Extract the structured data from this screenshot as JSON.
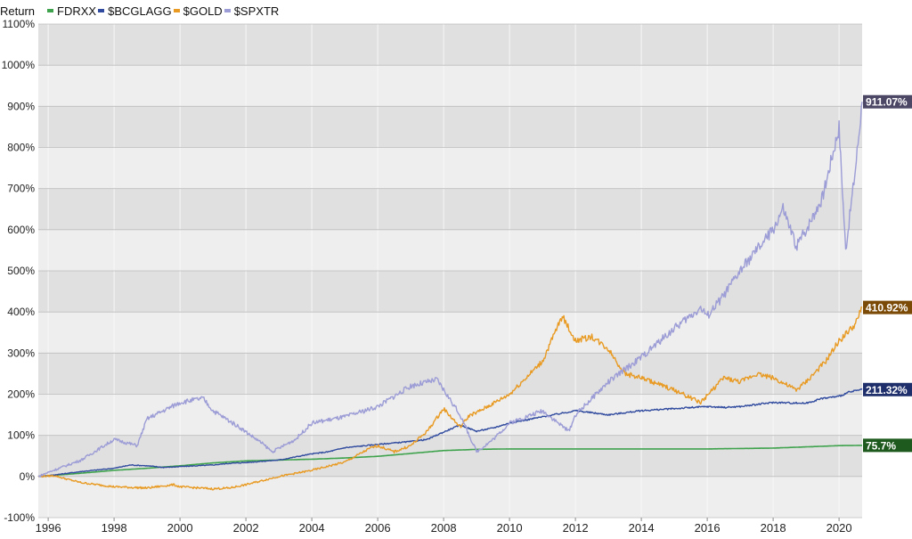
{
  "chart_data": {
    "type": "line",
    "title": "",
    "ylabel": "Return",
    "xlabel": "",
    "ylim": [
      -100,
      1100
    ],
    "xlim": [
      1995.7,
      2020.7
    ],
    "y_ticks": [
      -100,
      0,
      100,
      200,
      300,
      400,
      500,
      600,
      700,
      800,
      900,
      1000,
      1100
    ],
    "y_tick_labels": [
      "-100%",
      "0%",
      "100%",
      "200%",
      "300%",
      "400%",
      "500%",
      "600%",
      "700%",
      "800%",
      "900%",
      "1000%",
      "1100%"
    ],
    "x_ticks": [
      1996,
      1998,
      2000,
      2002,
      2004,
      2006,
      2008,
      2010,
      2012,
      2014,
      2016,
      2018,
      2020
    ],
    "x_tick_labels": [
      "1996",
      "1998",
      "2000",
      "2002",
      "2004",
      "2006",
      "2008",
      "2010",
      "2012",
      "2014",
      "2016",
      "2018",
      "2020"
    ],
    "grid": true,
    "legend_position": "top-left",
    "series": [
      {
        "name": "FDRXX",
        "color": "#3fa34d",
        "end_label": "75.7%",
        "label_bg": "#1e5a1e",
        "points": [
          [
            1995.7,
            0
          ],
          [
            1997,
            8
          ],
          [
            1998,
            15
          ],
          [
            1999,
            20
          ],
          [
            2000,
            26
          ],
          [
            2001,
            33
          ],
          [
            2002,
            38
          ],
          [
            2003,
            40
          ],
          [
            2004,
            42
          ],
          [
            2005,
            45
          ],
          [
            2006,
            49
          ],
          [
            2007,
            56
          ],
          [
            2008,
            63
          ],
          [
            2009,
            66
          ],
          [
            2010,
            67
          ],
          [
            2012,
            67
          ],
          [
            2014,
            67
          ],
          [
            2016,
            67
          ],
          [
            2018,
            69
          ],
          [
            2019,
            72
          ],
          [
            2020,
            75
          ],
          [
            2020.7,
            75.7
          ]
        ]
      },
      {
        "name": "$BCGLAGG",
        "color": "#2f4a9e",
        "end_label": "211.32%",
        "label_bg": "#1e2f6b",
        "points": [
          [
            1995.7,
            0
          ],
          [
            1996,
            2
          ],
          [
            1997,
            12
          ],
          [
            1998,
            20
          ],
          [
            1998.5,
            28
          ],
          [
            1999,
            26
          ],
          [
            1999.5,
            22
          ],
          [
            2000,
            24
          ],
          [
            2001,
            28
          ],
          [
            2001.5,
            32
          ],
          [
            2002,
            34
          ],
          [
            2003,
            40
          ],
          [
            2004,
            55
          ],
          [
            2004.5,
            60
          ],
          [
            2005,
            70
          ],
          [
            2006,
            78
          ],
          [
            2007,
            85
          ],
          [
            2007.5,
            90
          ],
          [
            2008,
            108
          ],
          [
            2008.5,
            125
          ],
          [
            2009,
            110
          ],
          [
            2009.5,
            118
          ],
          [
            2010,
            130
          ],
          [
            2011,
            145
          ],
          [
            2012,
            160
          ],
          [
            2012.5,
            155
          ],
          [
            2013,
            150
          ],
          [
            2014,
            160
          ],
          [
            2015,
            165
          ],
          [
            2016,
            170
          ],
          [
            2016.5,
            168
          ],
          [
            2017,
            170
          ],
          [
            2018,
            180
          ],
          [
            2019,
            178
          ],
          [
            2019.5,
            190
          ],
          [
            2020,
            195
          ],
          [
            2020.3,
            205
          ],
          [
            2020.7,
            211.32
          ]
        ]
      },
      {
        "name": "$GOLD",
        "color": "#e89a22",
        "end_label": "410.92%",
        "label_bg": "#7a4a06",
        "points": [
          [
            1995.7,
            0
          ],
          [
            1996.2,
            2
          ],
          [
            1996.5,
            -5
          ],
          [
            1997,
            -15
          ],
          [
            1998,
            -25
          ],
          [
            1999,
            -28
          ],
          [
            1999.8,
            -20
          ],
          [
            2000,
            -25
          ],
          [
            2001,
            -30
          ],
          [
            2001.5,
            -28
          ],
          [
            2002,
            -20
          ],
          [
            2003,
            0
          ],
          [
            2004,
            15
          ],
          [
            2005,
            35
          ],
          [
            2005.8,
            70
          ],
          [
            2006,
            75
          ],
          [
            2006.5,
            60
          ],
          [
            2007,
            75
          ],
          [
            2007.5,
            110
          ],
          [
            2008,
            165
          ],
          [
            2008.5,
            120
          ],
          [
            2008.8,
            150
          ],
          [
            2009,
            155
          ],
          [
            2010,
            200
          ],
          [
            2011,
            280
          ],
          [
            2011.6,
            390
          ],
          [
            2012,
            330
          ],
          [
            2012.5,
            340
          ],
          [
            2013,
            310
          ],
          [
            2013.5,
            250
          ],
          [
            2014,
            240
          ],
          [
            2015,
            210
          ],
          [
            2015.8,
            180
          ],
          [
            2016.5,
            240
          ],
          [
            2017,
            230
          ],
          [
            2017.5,
            250
          ],
          [
            2018,
            240
          ],
          [
            2018.7,
            210
          ],
          [
            2019,
            230
          ],
          [
            2019.6,
            280
          ],
          [
            2020,
            330
          ],
          [
            2020.5,
            370
          ],
          [
            2020.7,
            410.92
          ]
        ]
      },
      {
        "name": "$SPXTR",
        "color": "#9c9cd6",
        "end_label": "911.07%",
        "label_bg": "#4d4766",
        "points": [
          [
            1995.7,
            0
          ],
          [
            1996,
            10
          ],
          [
            1997,
            40
          ],
          [
            1998,
            90
          ],
          [
            1998.7,
            75
          ],
          [
            1999,
            140
          ],
          [
            2000,
            180
          ],
          [
            2000.7,
            190
          ],
          [
            2001,
            160
          ],
          [
            2001.8,
            120
          ],
          [
            2002.5,
            80
          ],
          [
            2002.8,
            60
          ],
          [
            2003.5,
            90
          ],
          [
            2004,
            130
          ],
          [
            2005,
            145
          ],
          [
            2006,
            170
          ],
          [
            2007,
            220
          ],
          [
            2007.8,
            235
          ],
          [
            2008.5,
            150
          ],
          [
            2009,
            60
          ],
          [
            2009.5,
            90
          ],
          [
            2010,
            130
          ],
          [
            2011,
            160
          ],
          [
            2011.8,
            110
          ],
          [
            2012,
            150
          ],
          [
            2013,
            230
          ],
          [
            2014,
            290
          ],
          [
            2015,
            360
          ],
          [
            2015.8,
            410
          ],
          [
            2016,
            390
          ],
          [
            2016.5,
            440
          ],
          [
            2017,
            500
          ],
          [
            2018,
            600
          ],
          [
            2018.3,
            650
          ],
          [
            2018.7,
            560
          ],
          [
            2019,
            600
          ],
          [
            2019.5,
            680
          ],
          [
            2020,
            850
          ],
          [
            2020.2,
            550
          ],
          [
            2020.5,
            750
          ],
          [
            2020.7,
            911.07
          ]
        ]
      }
    ]
  },
  "legend": {
    "ylabel": "Return"
  }
}
